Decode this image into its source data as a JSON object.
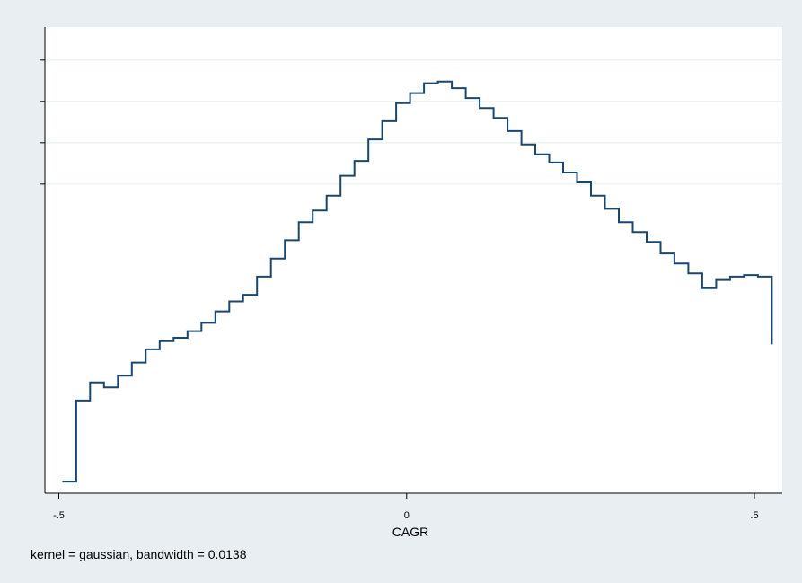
{
  "chart_data": {
    "type": "line",
    "line_style": "step",
    "xlabel": "CAGR",
    "x_ticks": [
      {
        "value": -0.5,
        "label": "-.5"
      },
      {
        "value": 0,
        "label": "0"
      },
      {
        "value": 0.5,
        "label": ".5"
      }
    ],
    "xlim": [
      -0.52,
      0.54
    ],
    "y_ticks": [
      1.25,
      1.5,
      1.75,
      2.0
    ],
    "y_tick_labels_shown": false,
    "ylim": [
      -0.62,
      2.2
    ],
    "grid": "horizontal at y ticks",
    "legend": "none",
    "series": [
      {
        "x": [
          -0.485,
          -0.465,
          -0.445,
          -0.425,
          -0.405,
          -0.385,
          -0.365,
          -0.345,
          -0.325,
          -0.305,
          -0.285,
          -0.265,
          -0.245,
          -0.225,
          -0.205,
          -0.185,
          -0.165,
          -0.145,
          -0.125,
          -0.105,
          -0.085,
          -0.065,
          -0.045,
          -0.025,
          -0.005,
          0.015,
          0.035,
          0.055,
          0.075,
          0.095,
          0.115,
          0.135,
          0.155,
          0.175,
          0.195,
          0.215,
          0.235,
          0.255,
          0.275,
          0.295,
          0.315,
          0.335,
          0.355,
          0.375,
          0.395,
          0.415,
          0.435,
          0.455,
          0.475,
          0.495,
          0.515
        ],
        "y": [
          -0.55,
          -0.06,
          0.05,
          0.02,
          0.09,
          0.17,
          0.25,
          0.3,
          0.32,
          0.36,
          0.41,
          0.48,
          0.54,
          0.58,
          0.69,
          0.8,
          0.91,
          1.02,
          1.09,
          1.18,
          1.3,
          1.39,
          1.52,
          1.63,
          1.74,
          1.8,
          1.86,
          1.87,
          1.83,
          1.77,
          1.71,
          1.65,
          1.57,
          1.49,
          1.43,
          1.38,
          1.32,
          1.26,
          1.18,
          1.1,
          1.02,
          0.96,
          0.9,
          0.83,
          0.77,
          0.71,
          0.62,
          0.67,
          0.69,
          0.7,
          0.69
        ]
      }
    ],
    "line_color": "#1a476f"
  },
  "note": "kernel = gaussian, bandwidth = 0.0138"
}
